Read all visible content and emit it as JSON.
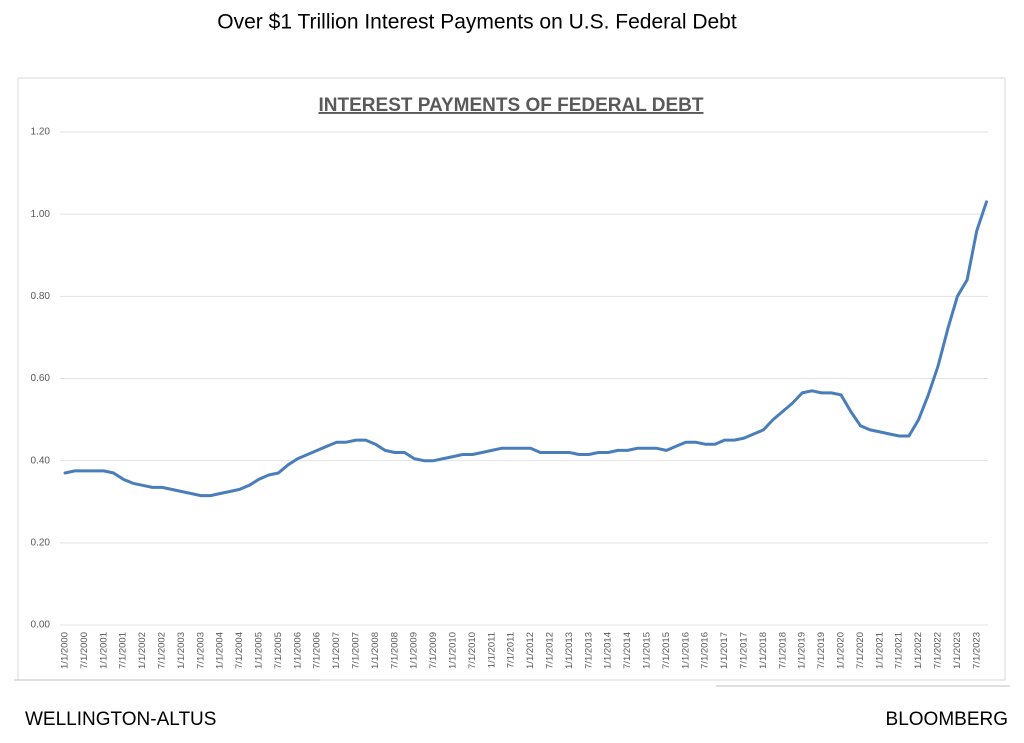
{
  "header": {
    "title": "Over $1 Trillion Interest Payments on U.S. Federal Debt"
  },
  "chart_data": {
    "type": "line",
    "title": "INTEREST PAYMENTS OF FEDERAL DEBT",
    "categories": [
      "1/1/2000",
      null,
      "7/1/2000",
      null,
      "1/1/2001",
      null,
      "7/1/2001",
      null,
      "1/1/2002",
      null,
      "7/1/2002",
      null,
      "1/1/2003",
      null,
      "7/1/2003",
      null,
      "1/1/2004",
      null,
      "7/1/2004",
      null,
      "1/1/2005",
      null,
      "7/1/2005",
      null,
      "1/1/2006",
      null,
      "7/1/2006",
      null,
      "1/1/2007",
      null,
      "7/1/2007",
      null,
      "1/1/2008",
      null,
      "7/1/2008",
      null,
      "1/1/2009",
      null,
      "7/1/2009",
      null,
      "1/1/2010",
      null,
      "7/1/2010",
      null,
      "1/1/2011",
      null,
      "7/1/2011",
      null,
      "1/1/2012",
      null,
      "7/1/2012",
      null,
      "1/1/2013",
      null,
      "7/1/2013",
      null,
      "1/1/2014",
      null,
      "7/1/2014",
      null,
      "1/1/2015",
      null,
      "7/1/2015",
      null,
      "1/1/2016",
      null,
      "7/1/2016",
      null,
      "1/1/2017",
      null,
      "7/1/2017",
      null,
      "1/1/2018",
      null,
      "7/1/2018",
      null,
      "1/1/2019",
      null,
      "7/1/2019",
      null,
      "1/1/2020",
      null,
      "7/1/2020",
      null,
      "1/1/2021",
      null,
      "7/1/2021",
      null,
      "1/1/2022",
      null,
      "7/1/2022",
      null,
      "1/1/2023",
      null,
      "7/1/2023",
      null
    ],
    "values": [
      0.37,
      0.375,
      0.375,
      0.375,
      0.375,
      0.37,
      0.355,
      0.345,
      0.34,
      0.335,
      0.335,
      0.33,
      0.325,
      0.32,
      0.315,
      0.315,
      0.32,
      0.325,
      0.33,
      0.34,
      0.355,
      0.365,
      0.37,
      0.39,
      0.405,
      0.415,
      0.425,
      0.435,
      0.445,
      0.445,
      0.45,
      0.45,
      0.44,
      0.425,
      0.42,
      0.42,
      0.405,
      0.4,
      0.4,
      0.405,
      0.41,
      0.415,
      0.415,
      0.42,
      0.425,
      0.43,
      0.43,
      0.43,
      0.43,
      0.42,
      0.42,
      0.42,
      0.42,
      0.415,
      0.415,
      0.42,
      0.42,
      0.425,
      0.425,
      0.43,
      0.43,
      0.43,
      0.425,
      0.435,
      0.445,
      0.445,
      0.44,
      0.44,
      0.45,
      0.45,
      0.455,
      0.465,
      0.475,
      0.5,
      0.52,
      0.54,
      0.565,
      0.57,
      0.565,
      0.565,
      0.56,
      0.52,
      0.485,
      0.475,
      0.47,
      0.465,
      0.46,
      0.46,
      0.5,
      0.56,
      0.63,
      0.72,
      0.8,
      0.84,
      0.96,
      1.03
    ],
    "color": "#4a7ebb",
    "ylim": [
      0,
      1.2
    ],
    "yticks": [
      {
        "value": 0,
        "label": "0.00"
      },
      {
        "value": 0.2,
        "label": "0.20"
      },
      {
        "value": 0.4,
        "label": "0.40"
      },
      {
        "value": 0.6,
        "label": "0.60"
      },
      {
        "value": 0.8,
        "label": "0.80"
      },
      {
        "value": 1.0,
        "label": "1.00"
      },
      {
        "value": 1.2,
        "label": "1.20"
      }
    ],
    "grid": true
  },
  "footer": {
    "left": "WELLINGTON-ALTUS",
    "right": "BLOOMBERG"
  }
}
